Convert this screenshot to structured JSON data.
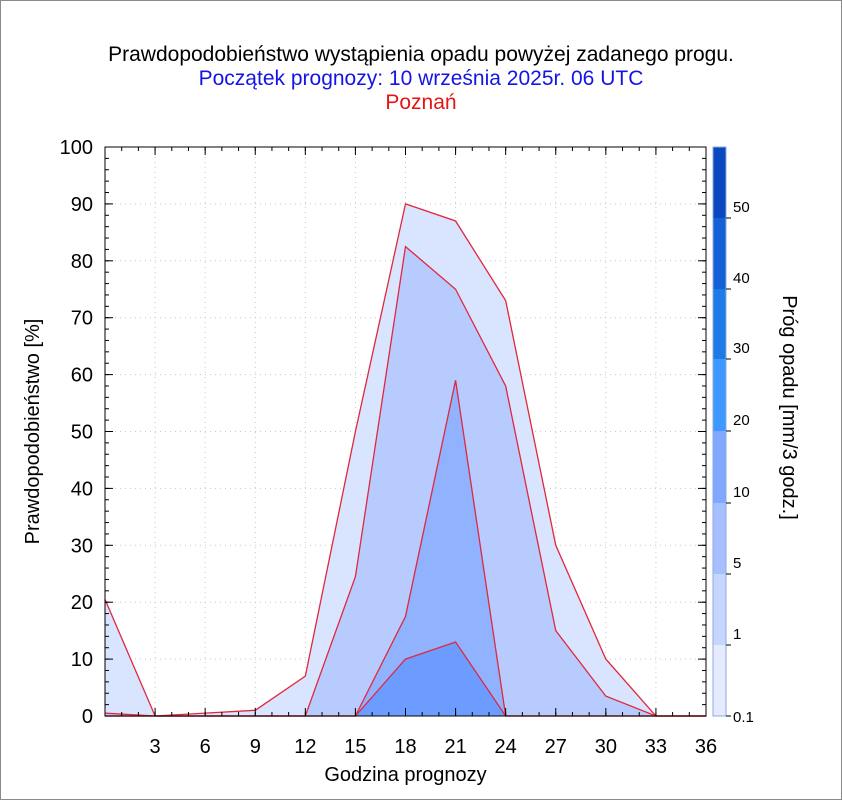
{
  "title": "Prawdopodobieństwo wystąpienia opadu powyżej zadanego progu.",
  "subtitle": "Początek prognozy: 10 września 2025r. 06 UTC",
  "location": "Poznań",
  "colors": {
    "title": "#000000",
    "subtitle": "#1414e6",
    "location": "#e61414",
    "outline": "#e0283c",
    "axis": "#000000"
  },
  "chart_data": {
    "type": "area",
    "xlabel": "Godzina prognozy",
    "ylabel": "Prawdopodobieństwo [%]",
    "xlim": [
      0,
      36
    ],
    "ylim": [
      0,
      100
    ],
    "x_ticks": [
      3,
      6,
      9,
      12,
      15,
      18,
      21,
      24,
      27,
      30,
      33,
      36
    ],
    "y_ticks": [
      0,
      10,
      20,
      30,
      40,
      50,
      60,
      70,
      80,
      90,
      100
    ],
    "grid": true,
    "x": [
      0,
      3,
      6,
      9,
      12,
      15,
      18,
      21,
      24,
      27,
      30,
      33,
      36
    ],
    "series": [
      {
        "threshold": "0.1",
        "color": "#d9e4ff",
        "values": [
          20.5,
          0,
          0.5,
          1,
          7,
          50,
          90,
          87,
          73,
          30,
          10,
          0,
          0
        ]
      },
      {
        "threshold": "1",
        "color": "#b8cbff",
        "values": [
          0.5,
          0,
          0,
          0,
          0,
          24.5,
          82.5,
          75,
          58,
          15,
          3.5,
          0,
          0
        ]
      },
      {
        "threshold": "5",
        "color": "#90b2ff",
        "values": [
          0,
          0,
          0,
          0,
          0,
          0,
          17.5,
          59,
          0,
          0,
          0,
          0,
          0
        ]
      },
      {
        "threshold": "10",
        "color": "#6c9cff",
        "values": [
          0,
          0,
          0,
          0,
          0,
          0,
          10,
          13,
          0,
          0,
          0,
          0,
          0
        ]
      }
    ],
    "colorbar": {
      "label": "Próg opadu [mm/3 godz.]",
      "ticks": [
        "0.1",
        "1",
        "5",
        "10",
        "20",
        "30",
        "40",
        "50"
      ],
      "colors": [
        "#e4ebff",
        "#c8d6ff",
        "#a6bfff",
        "#80a8ff",
        "#3d99ff",
        "#1e7ae6",
        "#1460d6",
        "#0a48c0"
      ]
    }
  }
}
